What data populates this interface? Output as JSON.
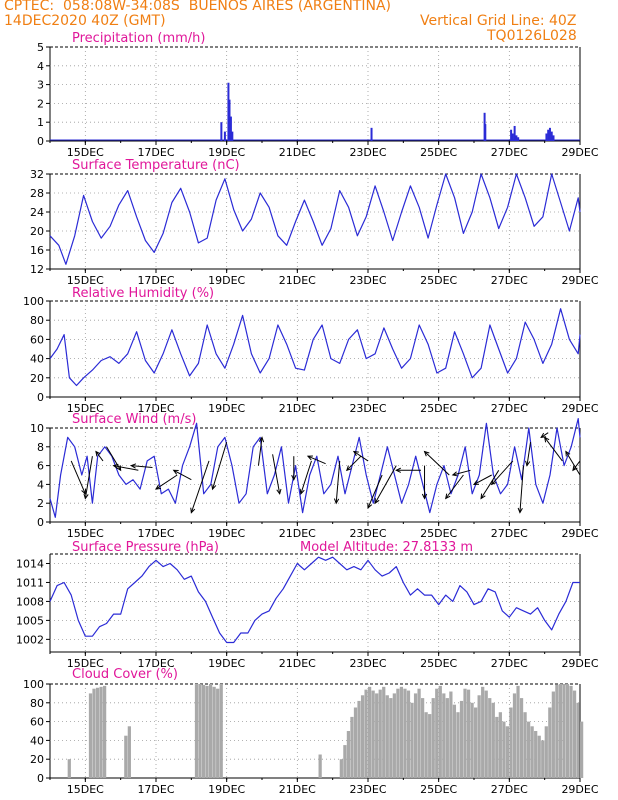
{
  "header": {
    "station": "CPTEC:  058:08W-34:08S  BUENOS AIRES (ARGENTINA)",
    "datetime": "14DEC2020 40Z (GMT)",
    "grid_note": "Vertical Grid Line: 40Z",
    "code": "TQ0126L028"
  },
  "colors": {
    "header_text": "#f07f13",
    "title_text": "#e0179a",
    "series_line": "#2b2bd6",
    "cloud_fill": "#a9a9a9",
    "arrow": "#000000",
    "grid": "#9a9a9a"
  },
  "x_axis": {
    "range": [
      14.0,
      29.0
    ],
    "ticks": [
      15,
      17,
      19,
      21,
      23,
      25,
      27,
      29
    ],
    "tick_labels": [
      "15DEC",
      "17DEC",
      "19DEC",
      "21DEC",
      "23DEC",
      "25DEC",
      "27DEC",
      "29DEC"
    ]
  },
  "chart_data": [
    {
      "id": "precip",
      "type": "bar",
      "title": "Precipitation (mm/h)",
      "ylim": [
        0,
        5
      ],
      "yticks": [
        0,
        1,
        2,
        3,
        4,
        5
      ],
      "x": [
        18.85,
        18.95,
        19.05,
        19.08,
        19.12,
        19.16,
        23.1,
        26.3,
        26.32,
        27.05,
        27.1,
        27.15,
        27.2,
        27.25,
        28.05,
        28.1,
        28.15,
        28.2,
        28.25
      ],
      "values": [
        1.0,
        0.5,
        3.1,
        2.2,
        1.3,
        0.5,
        0.7,
        1.5,
        0.9,
        0.6,
        0.4,
        0.8,
        0.3,
        0.2,
        0.4,
        0.6,
        0.7,
        0.5,
        0.3
      ]
    },
    {
      "id": "temp",
      "type": "line",
      "title": "Surface Temperature (nC)",
      "ylim": [
        12,
        32
      ],
      "yticks": [
        12,
        16,
        20,
        24,
        28,
        32
      ],
      "x": [
        14.0,
        14.25,
        14.45,
        14.7,
        14.95,
        15.2,
        15.45,
        15.7,
        15.95,
        16.2,
        16.45,
        16.7,
        16.95,
        17.2,
        17.45,
        17.7,
        17.95,
        18.2,
        18.45,
        18.7,
        18.95,
        19.2,
        19.45,
        19.7,
        19.95,
        20.2,
        20.45,
        20.7,
        20.95,
        21.2,
        21.45,
        21.7,
        21.95,
        22.2,
        22.45,
        22.7,
        22.95,
        23.2,
        23.45,
        23.7,
        23.95,
        24.2,
        24.45,
        24.7,
        24.95,
        25.2,
        25.45,
        25.7,
        25.95,
        26.2,
        26.45,
        26.7,
        26.95,
        27.2,
        27.45,
        27.7,
        27.95,
        28.2,
        28.45,
        28.7,
        28.95,
        29.0
      ],
      "y": [
        19,
        17,
        13,
        19,
        27.5,
        22,
        18.5,
        21,
        25.5,
        28.5,
        23,
        18,
        15.5,
        19.5,
        26,
        29,
        24,
        17.5,
        18.5,
        26.5,
        31,
        24.5,
        20,
        22.5,
        28,
        25,
        19,
        17,
        22,
        26.5,
        22,
        17,
        20.5,
        28.5,
        25,
        19,
        23,
        29.5,
        24,
        18,
        24,
        29.5,
        25,
        18.5,
        25.5,
        32,
        27,
        19.5,
        24,
        32,
        27,
        20.5,
        25,
        32,
        27,
        21,
        23,
        32,
        26,
        20,
        27,
        24
      ]
    },
    {
      "id": "rh",
      "type": "line",
      "title": "Relative Humidity (%)",
      "ylim": [
        0,
        100
      ],
      "yticks": [
        0,
        20,
        40,
        60,
        80,
        100
      ],
      "x": [
        14.0,
        14.2,
        14.4,
        14.55,
        14.75,
        14.95,
        15.2,
        15.45,
        15.7,
        15.95,
        16.2,
        16.45,
        16.7,
        16.95,
        17.2,
        17.45,
        17.7,
        17.95,
        18.2,
        18.45,
        18.7,
        18.95,
        19.2,
        19.45,
        19.7,
        19.95,
        20.2,
        20.45,
        20.7,
        20.95,
        21.2,
        21.45,
        21.7,
        21.95,
        22.2,
        22.45,
        22.7,
        22.95,
        23.2,
        23.45,
        23.7,
        23.95,
        24.2,
        24.45,
        24.7,
        24.95,
        25.2,
        25.45,
        25.7,
        25.95,
        26.2,
        26.45,
        26.7,
        26.95,
        27.2,
        27.45,
        27.7,
        27.95,
        28.2,
        28.45,
        28.7,
        28.95,
        29.0
      ],
      "y": [
        40,
        50,
        65,
        20,
        12,
        20,
        28,
        38,
        42,
        35,
        45,
        68,
        38,
        25,
        45,
        70,
        45,
        22,
        35,
        75,
        45,
        30,
        55,
        85,
        45,
        25,
        40,
        75,
        55,
        30,
        28,
        60,
        75,
        40,
        35,
        60,
        70,
        40,
        45,
        72,
        50,
        30,
        40,
        75,
        55,
        25,
        30,
        68,
        45,
        20,
        30,
        75,
        50,
        25,
        40,
        78,
        60,
        35,
        55,
        92,
        60,
        45,
        65
      ]
    },
    {
      "id": "wind",
      "type": "line",
      "title": "Surface Wind (m/s)",
      "ylim": [
        0,
        10
      ],
      "yticks": [
        0,
        2,
        4,
        6,
        8,
        10
      ],
      "x": [
        14.0,
        14.15,
        14.3,
        14.5,
        14.7,
        14.9,
        15.05,
        15.2,
        15.35,
        15.55,
        15.75,
        15.95,
        16.15,
        16.35,
        16.55,
        16.75,
        16.95,
        17.15,
        17.35,
        17.55,
        17.75,
        17.95,
        18.15,
        18.35,
        18.55,
        18.75,
        18.95,
        19.15,
        19.35,
        19.55,
        19.75,
        19.95,
        20.15,
        20.35,
        20.55,
        20.75,
        20.95,
        21.15,
        21.35,
        21.55,
        21.75,
        21.95,
        22.15,
        22.35,
        22.55,
        22.75,
        22.95,
        23.15,
        23.35,
        23.55,
        23.75,
        23.95,
        24.15,
        24.35,
        24.55,
        24.75,
        24.95,
        25.15,
        25.35,
        25.55,
        25.75,
        25.95,
        26.15,
        26.35,
        26.55,
        26.75,
        26.95,
        27.15,
        27.35,
        27.55,
        27.75,
        27.95,
        28.15,
        28.35,
        28.55,
        28.75,
        28.95,
        29.0
      ],
      "y": [
        2.5,
        0.5,
        5,
        9,
        8,
        5,
        7,
        2,
        7,
        8,
        7,
        5,
        4,
        4.5,
        3.5,
        6.5,
        7,
        3,
        3.5,
        2,
        6,
        8,
        10.5,
        3,
        4,
        8,
        9,
        6,
        2,
        3,
        8,
        9,
        3,
        5,
        8,
        2,
        6,
        1,
        5,
        7,
        3,
        4,
        7,
        3,
        6,
        9,
        5,
        2,
        5,
        8,
        5,
        2,
        4,
        7,
        4,
        1,
        4,
        6,
        3,
        5,
        8,
        3,
        5,
        10.5,
        5,
        3,
        4,
        8,
        4.5,
        10,
        4,
        2,
        5,
        10,
        6,
        8,
        11,
        9
      ]
    },
    {
      "id": "pres",
      "type": "line",
      "title": "Surface Pressure (hPa)",
      "annotation": "Model Altitude: 27.8133 m",
      "ylim": [
        1000.0,
        1015.5
      ],
      "yticks": [
        1002,
        1005,
        1008,
        1011,
        1014
      ],
      "x": [
        14.0,
        14.2,
        14.4,
        14.6,
        14.8,
        15.0,
        15.2,
        15.4,
        15.6,
        15.8,
        16.0,
        16.2,
        16.4,
        16.6,
        16.8,
        17.0,
        17.2,
        17.4,
        17.6,
        17.8,
        18.0,
        18.2,
        18.4,
        18.6,
        18.8,
        19.0,
        19.2,
        19.4,
        19.6,
        19.8,
        20.0,
        20.2,
        20.4,
        20.6,
        20.8,
        21.0,
        21.2,
        21.4,
        21.6,
        21.8,
        22.0,
        22.2,
        22.4,
        22.6,
        22.8,
        23.0,
        23.2,
        23.4,
        23.6,
        23.8,
        24.0,
        24.2,
        24.4,
        24.6,
        24.8,
        25.0,
        25.2,
        25.4,
        25.6,
        25.8,
        26.0,
        26.2,
        26.4,
        26.6,
        26.8,
        27.0,
        27.2,
        27.4,
        27.6,
        27.8,
        28.0,
        28.2,
        28.4,
        28.6,
        28.8,
        29.0
      ],
      "y": [
        1008,
        1010.5,
        1011,
        1009,
        1005,
        1002.5,
        1002.5,
        1004,
        1004.5,
        1006,
        1006,
        1010,
        1011,
        1012,
        1013.5,
        1014.5,
        1013.5,
        1014,
        1013,
        1011.5,
        1012,
        1009.5,
        1008,
        1005.5,
        1003,
        1001.5,
        1001.5,
        1003,
        1003,
        1005,
        1006,
        1006.5,
        1008.5,
        1010,
        1012,
        1014,
        1013,
        1014,
        1015,
        1014.5,
        1015,
        1014,
        1013,
        1013.5,
        1013,
        1014.5,
        1013,
        1012,
        1012.5,
        1013.5,
        1011,
        1009,
        1010,
        1009,
        1009,
        1007.5,
        1009,
        1008,
        1010.5,
        1009.5,
        1007.5,
        1008,
        1010,
        1009.5,
        1006.5,
        1005.5,
        1007,
        1006.5,
        1006,
        1007,
        1005,
        1003.5,
        1006,
        1008,
        1011,
        1011
      ]
    },
    {
      "id": "cloud",
      "type": "area",
      "title": "Cloud Cover (%)",
      "ylim": [
        0,
        100
      ],
      "yticks": [
        0,
        20,
        40,
        60,
        80,
        100
      ],
      "x": [
        14.0,
        14.1,
        14.2,
        14.3,
        14.4,
        14.5,
        14.6,
        14.7,
        14.8,
        14.9,
        15.0,
        15.1,
        15.2,
        15.3,
        15.4,
        15.5,
        15.6,
        15.7,
        15.8,
        15.9,
        16.0,
        16.1,
        16.2,
        16.3,
        16.4,
        16.5,
        16.6,
        16.7,
        16.8,
        16.9,
        17.0,
        17.1,
        17.2,
        17.3,
        17.4,
        17.5,
        17.6,
        17.7,
        17.8,
        17.9,
        18.0,
        18.1,
        18.2,
        18.3,
        18.4,
        18.5,
        18.6,
        18.7,
        18.8,
        18.9,
        19.0,
        19.1,
        19.2,
        19.3,
        19.4,
        19.5,
        19.6,
        19.7,
        19.8,
        19.9,
        20.0,
        20.1,
        20.2,
        20.3,
        20.4,
        20.5,
        20.6,
        20.7,
        20.8,
        20.9,
        21.0,
        21.1,
        21.2,
        21.3,
        21.4,
        21.5,
        21.6,
        21.7,
        21.8,
        21.9,
        22.0,
        22.1,
        22.2,
        22.3,
        22.4,
        22.5,
        22.6,
        22.7,
        22.8,
        22.9,
        23.0,
        23.1,
        23.2,
        23.3,
        23.4,
        23.5,
        23.6,
        23.7,
        23.8,
        23.9,
        24.0,
        24.1,
        24.2,
        24.3,
        24.4,
        24.5,
        24.6,
        24.7,
        24.8,
        24.9,
        25.0,
        25.1,
        25.2,
        25.3,
        25.4,
        25.5,
        25.6,
        25.7,
        25.8,
        25.9,
        26.0,
        26.1,
        26.2,
        26.3,
        26.4,
        26.5,
        26.6,
        26.7,
        26.8,
        26.9,
        27.0,
        27.1,
        27.2,
        27.3,
        27.4,
        27.5,
        27.6,
        27.7,
        27.8,
        27.9,
        28.0,
        28.1,
        28.2,
        28.3,
        28.4,
        28.5,
        28.6,
        28.7,
        28.8,
        28.9,
        29.0
      ],
      "y": [
        0,
        0,
        0,
        0,
        0,
        20,
        0,
        0,
        0,
        0,
        0,
        90,
        95,
        96,
        97,
        98,
        0,
        0,
        0,
        0,
        0,
        45,
        55,
        0,
        0,
        0,
        0,
        0,
        0,
        0,
        0,
        0,
        0,
        0,
        0,
        0,
        0,
        0,
        0,
        0,
        0,
        100,
        100,
        99,
        98,
        100,
        97,
        95,
        100,
        0,
        0,
        0,
        0,
        0,
        0,
        0,
        0,
        0,
        0,
        0,
        0,
        0,
        0,
        0,
        0,
        0,
        0,
        0,
        0,
        0,
        0,
        0,
        0,
        0,
        0,
        0,
        25,
        0,
        0,
        0,
        0,
        0,
        20,
        35,
        50,
        65,
        75,
        82,
        88,
        94,
        97,
        93,
        90,
        94,
        97,
        88,
        85,
        90,
        95,
        97,
        95,
        93,
        80,
        90,
        95,
        85,
        70,
        68,
        85,
        95,
        98,
        90,
        85,
        92,
        78,
        70,
        82,
        95,
        94,
        80,
        75,
        88,
        97,
        93,
        85,
        80,
        65,
        70,
        60,
        55,
        75,
        90,
        98,
        85,
        70,
        60,
        55,
        50,
        45,
        40,
        55,
        75,
        92,
        99,
        100,
        100,
        100,
        98,
        93,
        80,
        60
      ]
    }
  ]
}
